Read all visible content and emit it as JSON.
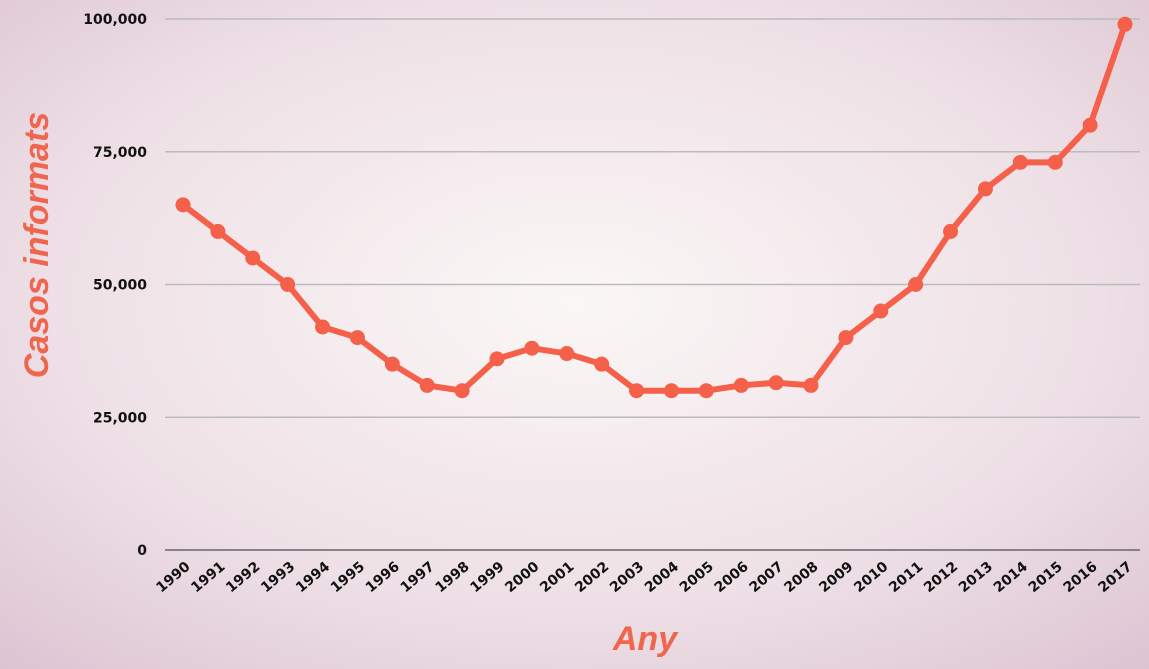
{
  "chart_data": {
    "type": "line",
    "x_label": "Any",
    "y_label": "Casos informats",
    "categories": [
      "1990",
      "1991",
      "1992",
      "1993",
      "1994",
      "1995",
      "1996",
      "1997",
      "1998",
      "1999",
      "2000",
      "2001",
      "2002",
      "2003",
      "2004",
      "2005",
      "2006",
      "2007",
      "2008",
      "2009",
      "2010",
      "2011",
      "2012",
      "2013",
      "2014",
      "2015",
      "2016",
      "2017"
    ],
    "series": [
      {
        "color": "#f4604a",
        "values": [
          65000,
          60000,
          55000,
          50000,
          42000,
          40000,
          35000,
          31000,
          30000,
          36000,
          38000,
          37000,
          35000,
          30000,
          30000,
          30000,
          31000,
          31500,
          31000,
          40000,
          45000,
          50000,
          60000,
          68000,
          73000,
          73000,
          80000,
          99000
        ]
      }
    ],
    "ylim": [
      0,
      100000
    ],
    "yticks": [
      0,
      {
        "value": 25000,
        "label": "25,000"
      },
      {
        "value": 50000,
        "label": "50,000"
      },
      {
        "value": 75000,
        "label": "75,000"
      },
      {
        "value": 100000,
        "label": "100,000"
      }
    ],
    "grid": true
  }
}
